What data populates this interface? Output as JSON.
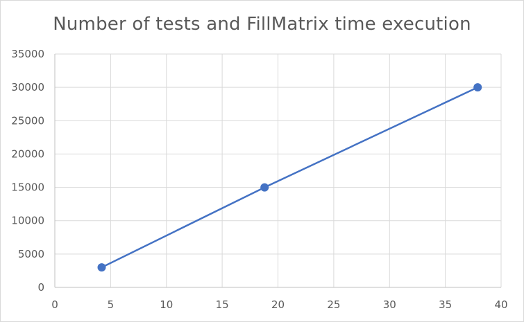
{
  "chart_data": {
    "type": "scatter",
    "title": "Number of tests and FillMatrix time execution",
    "xlabel": "",
    "ylabel": "",
    "xlim": [
      0,
      40
    ],
    "ylim": [
      0,
      35000
    ],
    "x_ticks": [
      0,
      5,
      10,
      15,
      20,
      25,
      30,
      35,
      40
    ],
    "y_ticks": [
      0,
      5000,
      10000,
      15000,
      20000,
      25000,
      30000,
      35000
    ],
    "grid": true,
    "legend": "none",
    "line_style": "straight lines with markers",
    "series": [
      {
        "color": "#4472c4",
        "points": [
          {
            "x": 4.2,
            "y": 3000
          },
          {
            "x": 18.8,
            "y": 15000
          },
          {
            "x": 37.9,
            "y": 30000
          }
        ]
      }
    ]
  },
  "colors": {
    "series": "#4472c4",
    "grid": "#d9d9d9",
    "axis": "#bfbfbf",
    "text": "#595959"
  }
}
